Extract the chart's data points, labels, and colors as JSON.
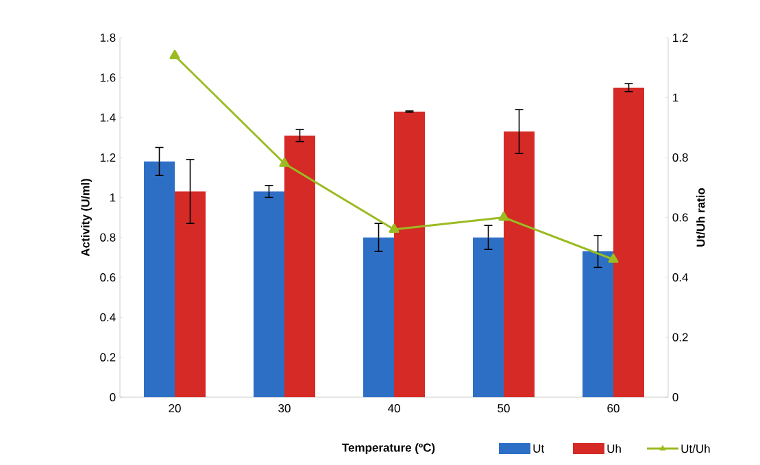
{
  "chart_data": {
    "type": "bar",
    "xlabel": "Temperature (ºC)",
    "ylabel": "Activity (U/ml)",
    "y2label": "Ut/Uh ratio",
    "categories": [
      "20",
      "30",
      "40",
      "50",
      "60"
    ],
    "series": [
      {
        "name": "Ut",
        "color": "#2e6fc6",
        "values": [
          1.18,
          1.03,
          0.8,
          0.8,
          0.73
        ],
        "errors": [
          0.07,
          0.03,
          0.07,
          0.06,
          0.08
        ]
      },
      {
        "name": "Uh",
        "color": "#d52a25",
        "values": [
          1.03,
          1.31,
          1.43,
          1.33,
          1.55
        ],
        "errors": [
          0.16,
          0.03,
          0.003,
          0.11,
          0.02
        ]
      },
      {
        "name": "Ut/Uh",
        "type": "line",
        "axis": "y2",
        "color": "#9bbb22",
        "marker": "triangle",
        "values": [
          1.14,
          0.78,
          0.56,
          0.6,
          0.46
        ]
      }
    ],
    "ylim": [
      0,
      1.8
    ],
    "yticks": [
      0,
      0.2,
      0.4,
      0.6,
      0.8,
      1,
      1.2,
      1.4,
      1.6,
      1.8
    ],
    "y2lim": [
      0,
      1.2
    ],
    "y2ticks": [
      0,
      0.2,
      0.4,
      0.6,
      0.8,
      1,
      1.2
    ],
    "grid": false,
    "legend": "bottom right"
  }
}
